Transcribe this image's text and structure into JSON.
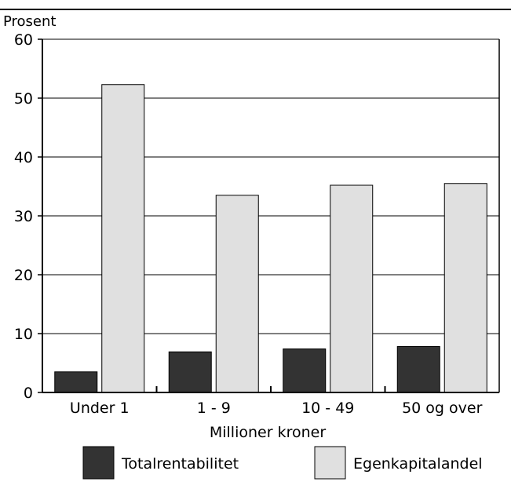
{
  "chart_data": {
    "type": "bar",
    "title": "",
    "ylabel": "Prosent",
    "xlabel": "Millioner kroner",
    "categories": [
      "Under 1",
      "1 - 9",
      "10 - 49",
      "50 og over"
    ],
    "series": [
      {
        "name": "Totalrentabilitet",
        "values": [
          3.5,
          6.9,
          7.4,
          7.8
        ],
        "color": "#333333"
      },
      {
        "name": "Egenkapitalandel",
        "values": [
          52.3,
          33.5,
          35.2,
          35.5
        ],
        "color": "#e0e0e0"
      }
    ],
    "ylim": [
      0,
      60
    ],
    "yticks": [
      0,
      10,
      20,
      30,
      40,
      50,
      60
    ],
    "grid": true,
    "legend_position": "bottom"
  }
}
